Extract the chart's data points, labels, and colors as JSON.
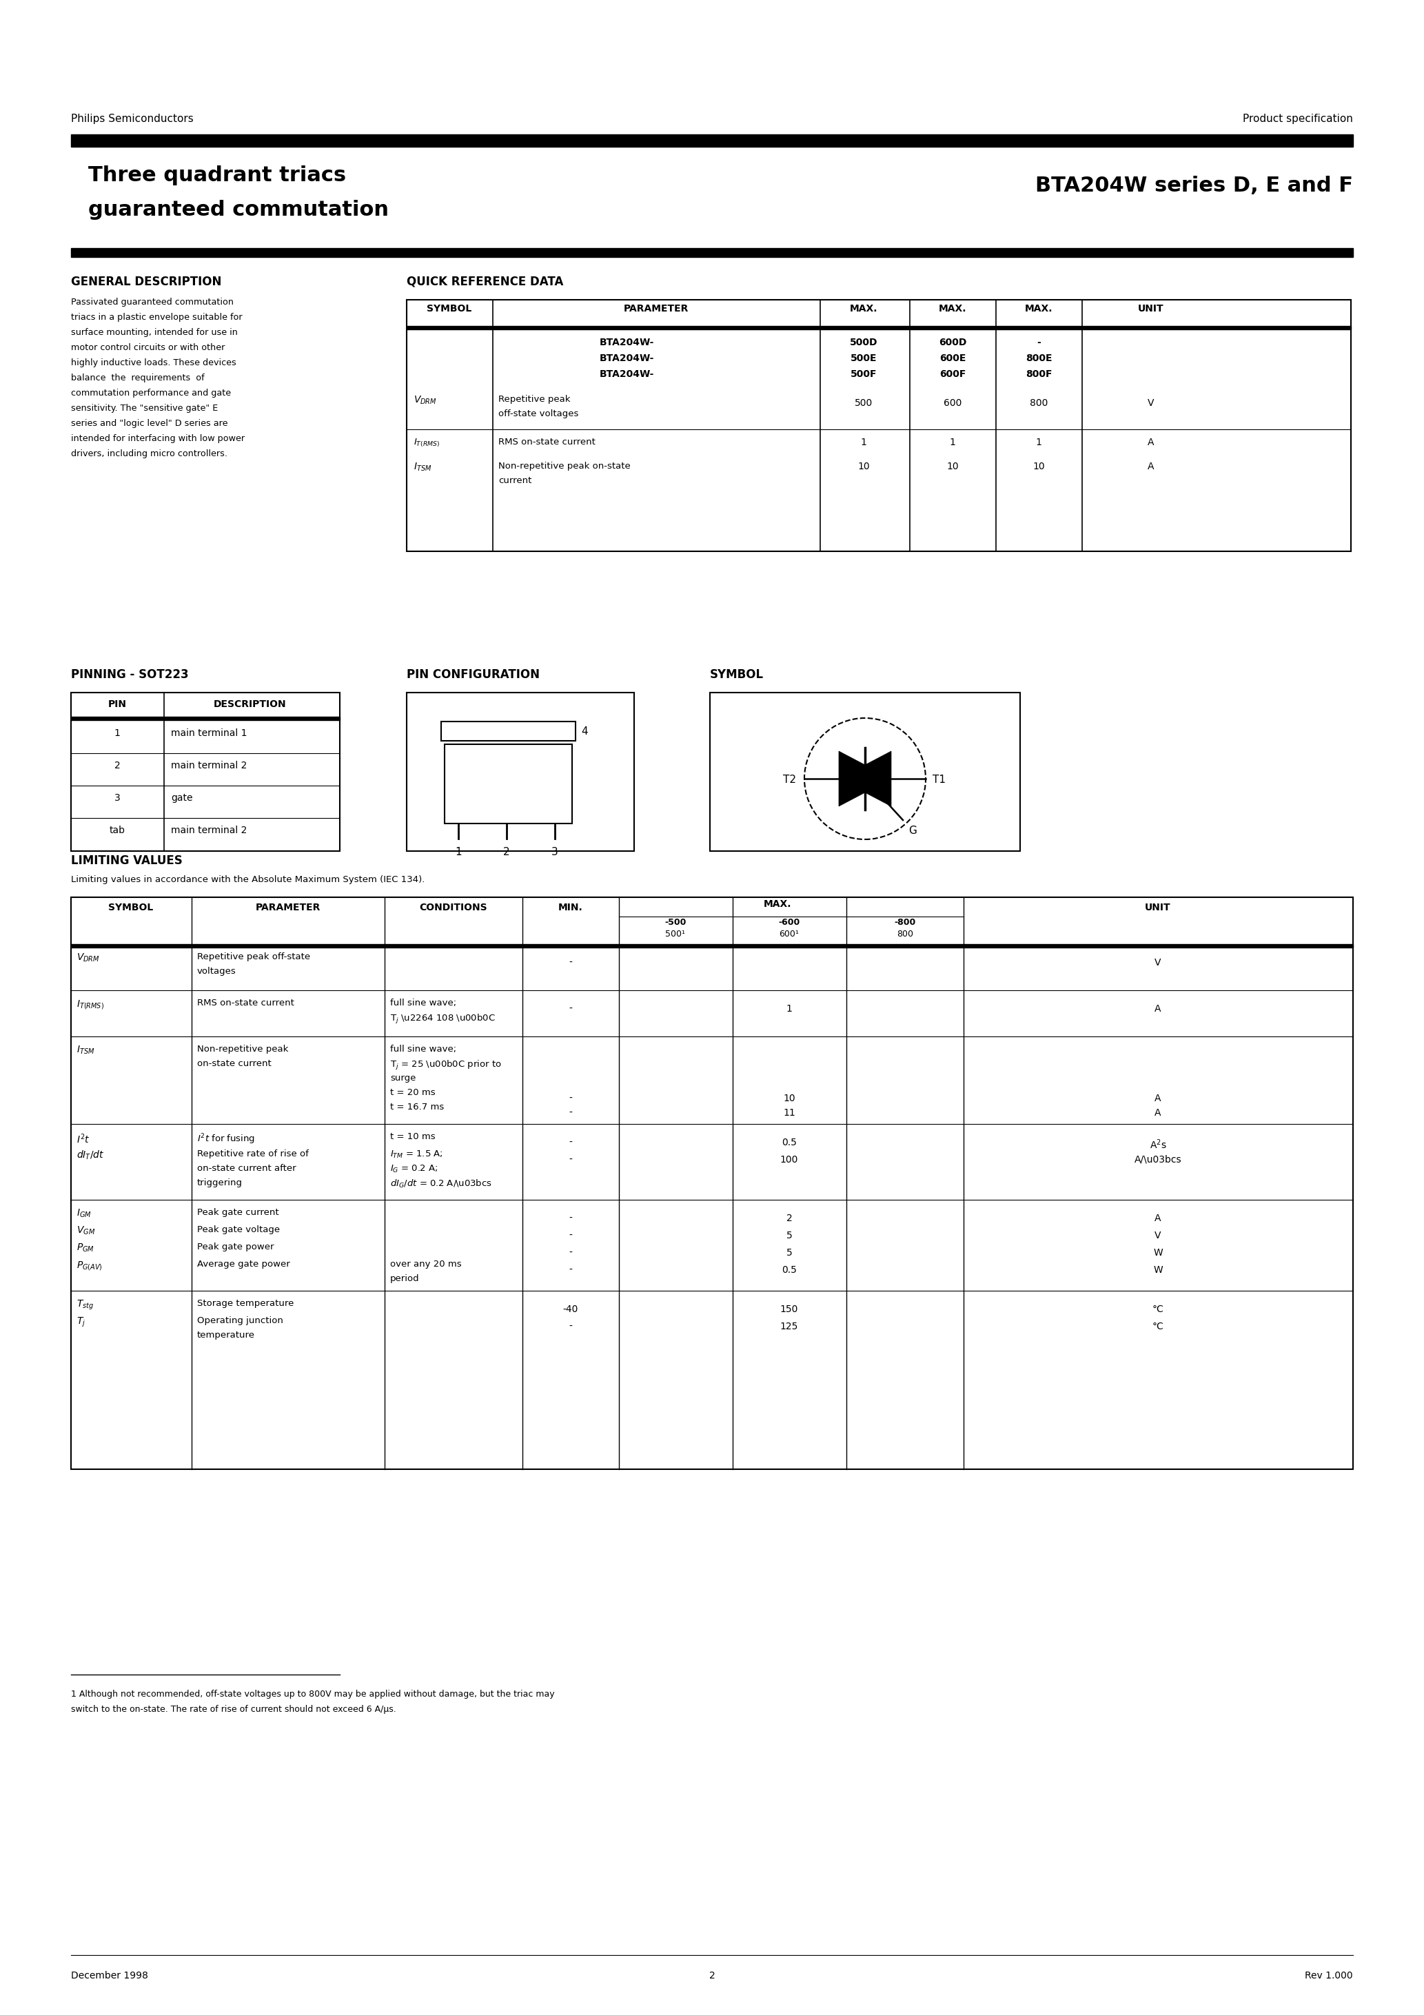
{
  "header_left": "Philips Semiconductors",
  "header_right": "Product specification",
  "title_left1": "Three quadrant triacs",
  "title_left2": "guaranteed commutation",
  "title_right": "BTA204W series D, E and F",
  "general_desc_title": "GENERAL DESCRIPTION",
  "general_desc_lines": [
    "Passivated guaranteed commutation",
    "triacs in a plastic envelope suitable for",
    "surface mounting, intended for use in",
    "motor control circuits or with other",
    "highly inductive loads. These devices",
    "balance  the  requirements  of",
    "commutation performance and gate",
    "sensitivity. The \"sensitive gate\" E",
    "series and \"logic level\" D series are",
    "intended for interfacing with low power",
    "drivers, including micro controllers."
  ],
  "quick_ref_title": "QUICK REFERENCE DATA",
  "pinning_title": "PINNING - SOT223",
  "pin_config_title": "PIN CONFIGURATION",
  "symbol_title": "SYMBOL",
  "limiting_title": "LIMITING VALUES",
  "limiting_subtitle": "Limiting values in accordance with the Absolute Maximum System (IEC 134).",
  "footnote_line1": "1 Although not recommended, off-state voltages up to 800V may be applied without damage, but the triac may",
  "footnote_line2": "switch to the on-state. The rate of rise of current should not exceed 6 A/μs.",
  "footer_left": "December 1998",
  "footer_center": "2",
  "footer_right": "Rev 1.000"
}
